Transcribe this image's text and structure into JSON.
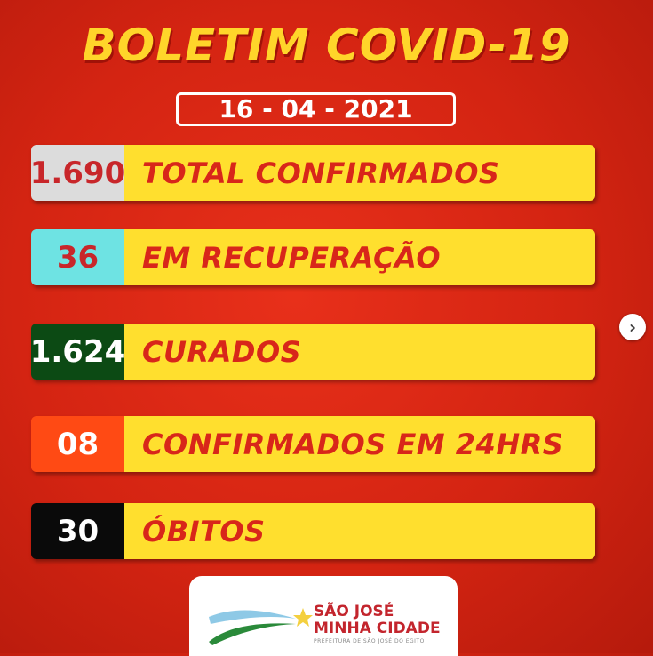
{
  "title": "BOLETIM COVID-19",
  "date": "16 - 04 - 2021",
  "rows": [
    {
      "value": "1.690",
      "label": "TOTAL CONFIRMADOS",
      "box_color": "#dcdcdc",
      "text_color": "#c8262a"
    },
    {
      "value": "36",
      "label": "EM RECUPERAÇÃO",
      "box_color": "#6ee3e3",
      "text_color": "#c8262a"
    },
    {
      "value": "1.624",
      "label": "CURADOS",
      "box_color": "#0c4a14",
      "text_color": "#ffffff"
    },
    {
      "value": "08",
      "label": "CONFIRMADOS EM 24HRS",
      "box_color": "#ff4a14",
      "text_color": "#ffffff"
    },
    {
      "value": "30",
      "label": "ÓBITOS",
      "box_color": "#0a0a0a",
      "text_color": "#ffffff"
    }
  ],
  "next_icon": "chevron-right-icon",
  "logo": {
    "line1": "SÃO JOSÉ",
    "line2": "MINHA CIDADE",
    "line3": "PREFEITURA DE SÃO JOSÉ DO EGITO"
  }
}
